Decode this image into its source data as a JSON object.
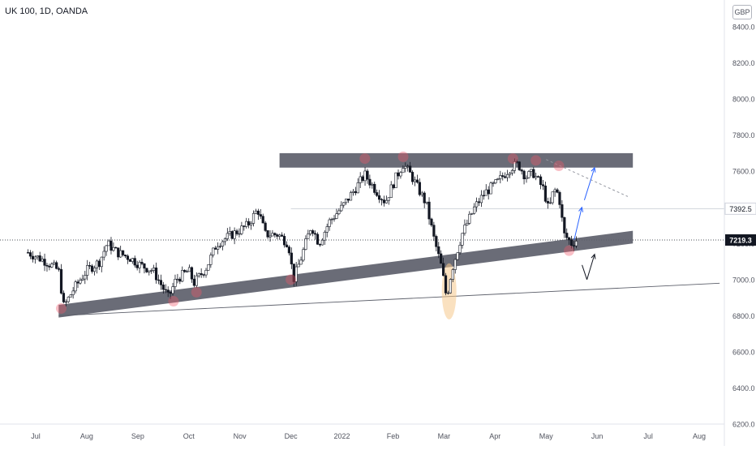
{
  "symbol": "UK 100, 1D, OANDA",
  "currency": "GBP",
  "chart_data": {
    "type": "candlestick",
    "title": "UK 100, 1D, OANDA",
    "ylim": [
      6200,
      8500
    ],
    "y_ticks": [
      6200,
      6400,
      6600,
      6800,
      7000,
      7200,
      7400,
      7600,
      7800,
      8000,
      8200,
      8400
    ],
    "y_tick_labels": [
      "6200.0",
      "6400.0",
      "6600.0",
      "6800.0",
      "7000.0",
      "7200.0",
      "7400.0",
      "7600.0",
      "7800.0",
      "8000.0",
      "8200.0",
      "8400.0"
    ],
    "x_tick_labels": [
      "Jul",
      "Aug",
      "Sep",
      "Oct",
      "Nov",
      "Dec",
      "2022",
      "Feb",
      "Mar",
      "Apr",
      "May",
      "Jun",
      "Jul",
      "Aug"
    ],
    "x_tick_months": [
      0,
      1,
      2,
      3,
      4,
      5,
      6,
      7,
      8,
      9,
      10,
      11,
      12,
      13
    ],
    "month_start": "2021-07",
    "price_path": [
      [
        -0.15,
        7150
      ],
      [
        0.2,
        7100
      ],
      [
        0.45,
        7050
      ],
      [
        0.55,
        6850
      ],
      [
        0.75,
        6950
      ],
      [
        1.0,
        7050
      ],
      [
        1.25,
        7100
      ],
      [
        1.4,
        7200
      ],
      [
        1.6,
        7150
      ],
      [
        1.85,
        7120
      ],
      [
        2.05,
        7080
      ],
      [
        2.3,
        7050
      ],
      [
        2.6,
        6900
      ],
      [
        2.75,
        7000
      ],
      [
        3.0,
        7050
      ],
      [
        3.1,
        6980
      ],
      [
        3.35,
        7070
      ],
      [
        3.55,
        7200
      ],
      [
        3.85,
        7250
      ],
      [
        4.15,
        7300
      ],
      [
        4.35,
        7390
      ],
      [
        4.5,
        7250
      ],
      [
        4.75,
        7250
      ],
      [
        4.95,
        7200
      ],
      [
        5.05,
        7000
      ],
      [
        5.2,
        7120
      ],
      [
        5.4,
        7300
      ],
      [
        5.55,
        7200
      ],
      [
        5.75,
        7320
      ],
      [
        6.0,
        7400
      ],
      [
        6.2,
        7480
      ],
      [
        6.45,
        7580
      ],
      [
        6.65,
        7500
      ],
      [
        6.85,
        7430
      ],
      [
        7.05,
        7560
      ],
      [
        7.2,
        7640
      ],
      [
        7.35,
        7580
      ],
      [
        7.5,
        7500
      ],
      [
        7.65,
        7420
      ],
      [
        7.8,
        7230
      ],
      [
        7.95,
        7070
      ],
      [
        8.05,
        6900
      ],
      [
        8.15,
        7050
      ],
      [
        8.35,
        7250
      ],
      [
        8.6,
        7400
      ],
      [
        8.8,
        7480
      ],
      [
        9.05,
        7540
      ],
      [
        9.3,
        7620
      ],
      [
        9.45,
        7640
      ],
      [
        9.6,
        7570
      ],
      [
        9.75,
        7590
      ],
      [
        9.95,
        7500
      ],
      [
        10.05,
        7380
      ],
      [
        10.15,
        7500
      ],
      [
        10.25,
        7470
      ],
      [
        10.35,
        7250
      ],
      [
        10.5,
        7200
      ],
      [
        10.6,
        7220
      ]
    ],
    "last_price": 7219.3,
    "last_price_label": "7219.3",
    "marked_level": 7392.5,
    "marked_level_label": "7392.5",
    "annotations": {
      "resistance_zone": {
        "from_month": 5.0,
        "to_month": 11.7,
        "low": 7620,
        "high": 7700
      },
      "support_channel": [
        {
          "month": 0.45,
          "low": 6790,
          "high": 6860
        },
        {
          "month": 11.7,
          "low": 7200,
          "high": 7270
        }
      ],
      "lower_trendline": [
        {
          "month": 0.45,
          "value": 6800
        },
        {
          "month": 13.4,
          "value": 6980
        }
      ],
      "descending_dashed_line": [
        {
          "month": 10.0,
          "value": 7665
        },
        {
          "month": 11.6,
          "value": 7460
        }
      ],
      "touch_markers": [
        {
          "month": 0.5,
          "value": 6840
        },
        {
          "month": 2.7,
          "value": 6880
        },
        {
          "month": 3.15,
          "value": 6930
        },
        {
          "month": 5.0,
          "value": 7000
        },
        {
          "month": 6.45,
          "value": 7670
        },
        {
          "month": 7.2,
          "value": 7680
        },
        {
          "month": 9.35,
          "value": 7670
        },
        {
          "month": 9.8,
          "value": 7660
        },
        {
          "month": 10.25,
          "value": 7630
        },
        {
          "month": 10.45,
          "value": 7160
        }
      ],
      "false_break_highlight": {
        "month": 8.1,
        "low": 6780,
        "high": 7090
      },
      "projection_arrows": [
        {
          "from_month": 10.55,
          "from": 7220,
          "to_month": 10.7,
          "to": 7400,
          "color": "#2962ff"
        },
        {
          "from_month": 10.75,
          "from": 7440,
          "to_month": 10.95,
          "to": 7620,
          "color": "#2962ff"
        },
        {
          "from_month": 10.8,
          "from": 7000,
          "to_month": 10.95,
          "to": 7140,
          "color": "#131722"
        }
      ]
    },
    "colors": {
      "candle": "#131722",
      "zone": "#5d606b",
      "marker": "#f05668",
      "projection": "#2962ff",
      "highlight": "#f5c98c"
    }
  }
}
